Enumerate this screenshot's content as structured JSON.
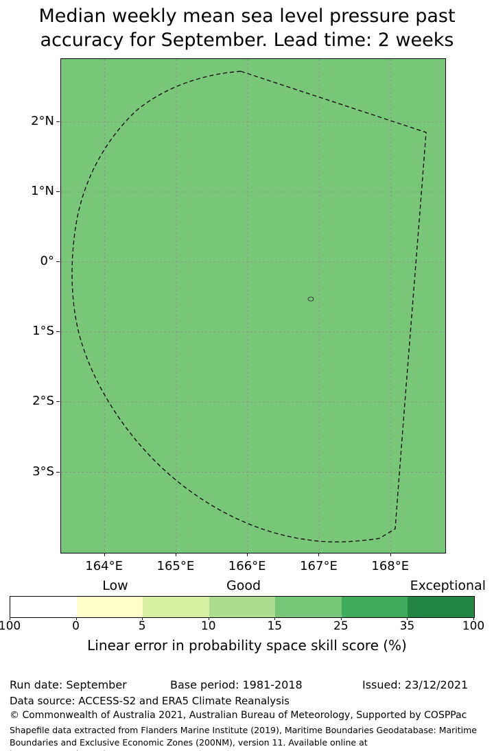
{
  "title": {
    "line1": "Median weekly mean sea level pressure past",
    "line2": "accuracy for September. Lead time: 2 weeks"
  },
  "map": {
    "fill_color": "#78c679",
    "boundary_name": "eez-dashed-boundary",
    "island_name": "small-island-marker",
    "x_axis": {
      "min": 163.39,
      "max": 168.76,
      "ticks": [
        {
          "label": "164°E",
          "value": 164
        },
        {
          "label": "165°E",
          "value": 165
        },
        {
          "label": "166°E",
          "value": 166
        },
        {
          "label": "167°E",
          "value": 167
        },
        {
          "label": "168°E",
          "value": 168
        }
      ]
    },
    "y_axis": {
      "top": 2.9,
      "bottom": -4.15,
      "ticks": [
        {
          "label": "2°N",
          "value": 2
        },
        {
          "label": "1°N",
          "value": 1
        },
        {
          "label": "0°",
          "value": 0
        },
        {
          "label": "1°S",
          "value": -1
        },
        {
          "label": "2°S",
          "value": -2
        },
        {
          "label": "3°S",
          "value": -3
        }
      ]
    }
  },
  "colorbar": {
    "qualitative_labels": [
      "Low",
      "Good",
      "Exceptional"
    ],
    "segments": [
      "#ffffff",
      "#ffffcc",
      "#d9f0a3",
      "#addd8e",
      "#78c679",
      "#41ab5d",
      "#238443"
    ],
    "ticks": [
      "100",
      "0",
      "5",
      "10",
      "15",
      "25",
      "35",
      "100"
    ],
    "caption": "Linear error in probability space skill score (%)"
  },
  "footer": {
    "run_date": "Run date: September",
    "base_period": "Base period: 1981-2018",
    "issued": "Issued: 23/12/2021",
    "data_source": "Data source: ACCESS-S2 and ERA5 Climate Reanalysis",
    "copyright": "© Commonwealth of Australia 2021, Australian Bureau of Meteorology, Supported by COSPPac",
    "attribution": "Shapefile data extracted from Flanders Marine Institute (2019), Maritime Boundaries Geodatabase: Maritime Boundaries and Exclusive Economic Zones (200NM), version 11. Available online at http://www.marineregions.org/."
  },
  "chart_data": {
    "type": "heatmap",
    "subtype": "choropleth-map",
    "title": "Median weekly mean sea level pressure past accuracy for September. Lead time: 2 weeks",
    "x": {
      "label": "",
      "tick_labels": [
        "164°E",
        "165°E",
        "166°E",
        "167°E",
        "168°E"
      ],
      "range_deg_east": [
        163.39,
        168.76
      ]
    },
    "y": {
      "label": "",
      "tick_labels": [
        "2°N",
        "1°N",
        "0°",
        "1°S",
        "2°S",
        "3°S"
      ],
      "range_deg_north": [
        2.9,
        -4.15
      ]
    },
    "grid": true,
    "legend_position": "bottom-colorbar",
    "colorbar": {
      "caption": "Linear error in probability space skill score (%)",
      "qualitative_labels": [
        "Low",
        "Good",
        "Exceptional"
      ],
      "bin_edge_labels": [
        "100",
        "0",
        "5",
        "10",
        "15",
        "25",
        "35",
        "100"
      ],
      "bin_colors": [
        "#ffffff",
        "#ffffcc",
        "#d9f0a3",
        "#addd8e",
        "#78c679",
        "#41ab5d",
        "#238443"
      ]
    },
    "values": [
      {
        "region": "entire mapped area inside and around dashed EEZ boundary",
        "fill_color": "#78c679",
        "skill_score_bin": "15-25"
      }
    ],
    "annotations": [
      "Dashed closed curve marks an Exclusive Economic Zone boundary",
      "Tiny island outline near 167°E, 0.5°S"
    ]
  }
}
